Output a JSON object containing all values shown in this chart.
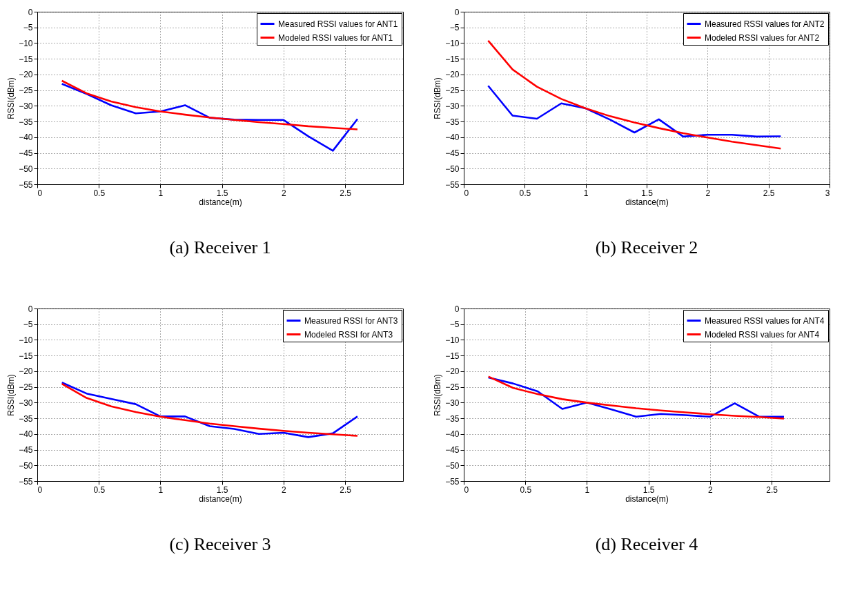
{
  "chart_data": [
    {
      "type": "line",
      "title": "(a) Receiver 1",
      "xlabel": "distance(m)",
      "ylabel": "RSSI(dBm)",
      "x": [
        0.2,
        0.4,
        0.6,
        0.8,
        1.0,
        1.2,
        1.4,
        1.6,
        1.8,
        2.0,
        2.2,
        2.4,
        2.6
      ],
      "xlim": [
        0,
        2.97
      ],
      "xticks": [
        0,
        0.5,
        1,
        1.5,
        2,
        2.5
      ],
      "ylim": [
        -55,
        0
      ],
      "yticks": [
        -55,
        -50,
        -45,
        -40,
        -35,
        -30,
        -25,
        -20,
        -15,
        -10,
        -5,
        0
      ],
      "grid": true,
      "legend": "top right",
      "line_style": "solid",
      "series": [
        {
          "name": "Measured RSSI values for ANT1",
          "color": "#0000ff",
          "values": [
            -23,
            -26.2,
            -29.8,
            -32.4,
            -31.8,
            -29.8,
            -33.8,
            -34.4,
            -34.5,
            -34.5,
            -39.7,
            -44.3,
            -34.2
          ]
        },
        {
          "name": "Modeled RSSI values for ANT1",
          "color": "#ff0000",
          "values": [
            -22,
            -26,
            -28.6,
            -30.4,
            -31.8,
            -32.8,
            -33.7,
            -34.5,
            -35.2,
            -35.8,
            -36.5,
            -37,
            -37.5
          ]
        }
      ]
    },
    {
      "type": "line",
      "title": "(b) Receiver 2",
      "xlabel": "distance(m)",
      "ylabel": "RSSI(dBm)",
      "x": [
        0.2,
        0.4,
        0.6,
        0.8,
        1.0,
        1.2,
        1.4,
        1.6,
        1.8,
        2.0,
        2.2,
        2.4,
        2.6
      ],
      "xlim": [
        0,
        3
      ],
      "xticks": [
        0,
        0.5,
        1,
        1.5,
        2,
        2.5,
        3
      ],
      "ylim": [
        -55,
        0
      ],
      "yticks": [
        -55,
        -50,
        -45,
        -40,
        -35,
        -30,
        -25,
        -20,
        -15,
        -10,
        -5,
        0
      ],
      "grid": true,
      "legend": "top right",
      "line_style": "solid",
      "series": [
        {
          "name": "Measured RSSI values for ANT2",
          "color": "#0000ff",
          "values": [
            -23.6,
            -33.1,
            -34.1,
            -29.2,
            -30.8,
            -34.4,
            -38.5,
            -34.3,
            -39.8,
            -39.2,
            -39.2,
            -39.8,
            -39.7
          ]
        },
        {
          "name": "Modeled RSSI values for ANT2",
          "color": "#ff0000",
          "values": [
            -9.2,
            -18.4,
            -23.9,
            -27.8,
            -30.8,
            -33.3,
            -35.3,
            -37.1,
            -38.7,
            -40.1,
            -41.4,
            -42.5,
            -43.6
          ]
        }
      ]
    },
    {
      "type": "line",
      "title": "(c) Receiver 3",
      "xlabel": "distance(m)",
      "ylabel": "RSSI(dBm)",
      "x": [
        0.2,
        0.4,
        0.6,
        0.8,
        1.0,
        1.2,
        1.4,
        1.6,
        1.8,
        2.0,
        2.2,
        2.4,
        2.6
      ],
      "xlim": [
        0,
        2.97
      ],
      "xticks": [
        0,
        0.5,
        1,
        1.5,
        2,
        2.5
      ],
      "ylim": [
        -55,
        0
      ],
      "yticks": [
        -55,
        -50,
        -45,
        -40,
        -35,
        -30,
        -25,
        -20,
        -15,
        -10,
        -5,
        0
      ],
      "grid": true,
      "legend": "top right",
      "line_style": "solid",
      "series": [
        {
          "name": "Measured RSSI for ANT3",
          "color": "#0000ff",
          "values": [
            -23.6,
            -27.1,
            -28.8,
            -30.5,
            -34.4,
            -34.4,
            -37.5,
            -38.4,
            -40,
            -39.6,
            -41,
            -39.8,
            -34.4
          ]
        },
        {
          "name": "Modeled RSSI for ANT3",
          "color": "#ff0000",
          "values": [
            -24,
            -28.5,
            -31.2,
            -33,
            -34.5,
            -35.6,
            -36.7,
            -37.5,
            -38.3,
            -39,
            -39.6,
            -40.1,
            -40.6
          ]
        }
      ]
    },
    {
      "type": "line",
      "title": "(d) Receiver 4",
      "xlabel": "distance(m)",
      "ylabel": "RSSI(dBm)",
      "x": [
        0.2,
        0.4,
        0.6,
        0.8,
        1.0,
        1.2,
        1.4,
        1.6,
        1.8,
        2.0,
        2.2,
        2.4,
        2.6
      ],
      "xlim": [
        0,
        2.97
      ],
      "xticks": [
        0,
        0.5,
        1,
        1.5,
        2,
        2.5
      ],
      "ylim": [
        -55,
        0
      ],
      "yticks": [
        -55,
        -50,
        -45,
        -40,
        -35,
        -30,
        -25,
        -20,
        -15,
        -10,
        -5,
        0
      ],
      "grid": true,
      "legend": "top right",
      "line_style": "solid",
      "series": [
        {
          "name": "Measured RSSI values for ANT4",
          "color": "#0000ff",
          "values": [
            -22,
            -23.9,
            -26.4,
            -32,
            -30,
            -32.2,
            -34.5,
            -33.6,
            -34,
            -34.5,
            -30.2,
            -34.5,
            -34.5
          ]
        },
        {
          "name": "Modeled RSSI values for ANT4",
          "color": "#ff0000",
          "values": [
            -21.7,
            -25.3,
            -27.3,
            -28.9,
            -30,
            -30.9,
            -31.8,
            -32.5,
            -33.1,
            -33.7,
            -34.2,
            -34.6,
            -35.1
          ]
        }
      ]
    }
  ]
}
